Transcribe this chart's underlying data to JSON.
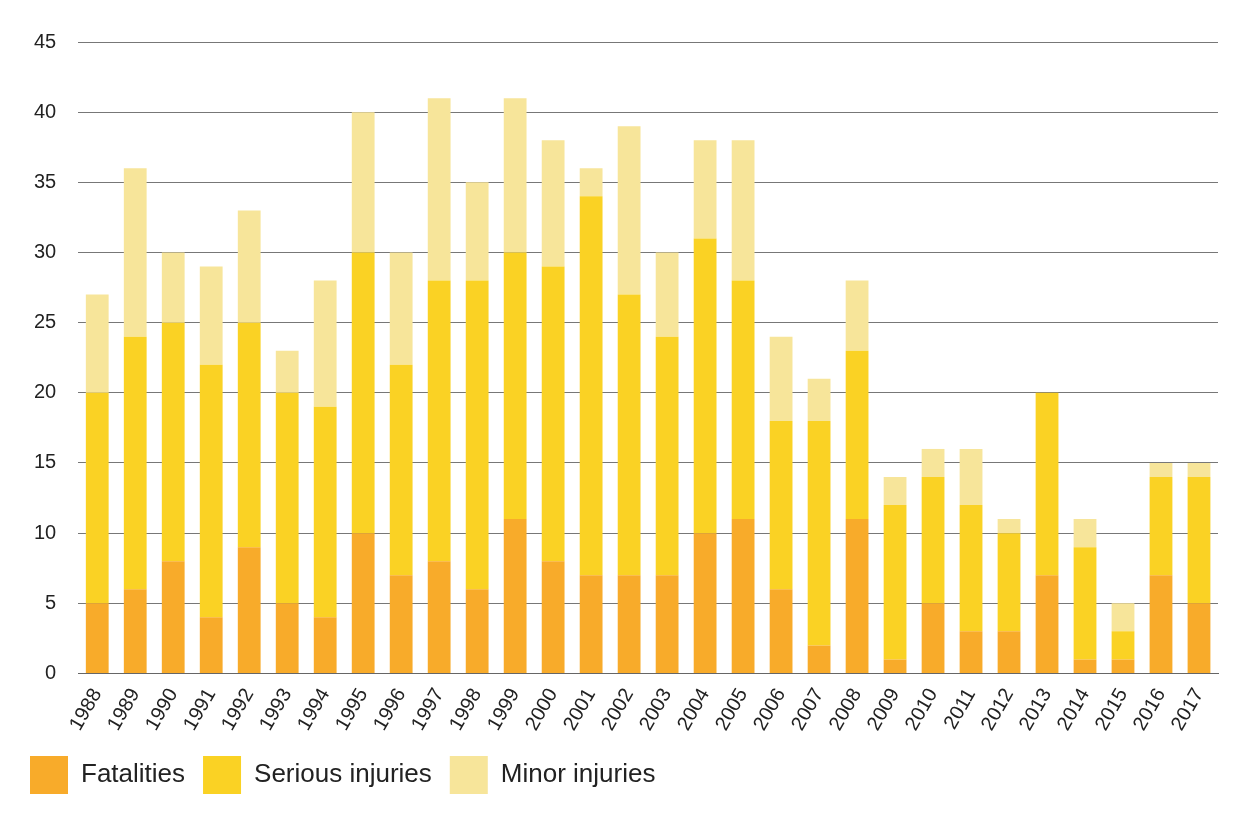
{
  "chart_data": {
    "type": "bar",
    "stacked": true,
    "categories": [
      "1988",
      "1989",
      "1990",
      "1991",
      "1992",
      "1993",
      "1994",
      "1995",
      "1996",
      "1997",
      "1998",
      "1999",
      "2000",
      "2001",
      "2002",
      "2003",
      "2004",
      "2005",
      "2006",
      "2007",
      "2008",
      "2009",
      "2010",
      "2011",
      "2012",
      "2013",
      "2014",
      "2015",
      "2016",
      "2017"
    ],
    "series": [
      {
        "name": "Fatalities",
        "color": "#f8ab2a",
        "values": [
          5,
          6,
          8,
          4,
          9,
          5,
          4,
          10,
          7,
          8,
          6,
          11,
          8,
          7,
          7,
          7,
          10,
          11,
          6,
          2,
          11,
          1,
          5,
          3,
          3,
          7,
          1,
          1,
          7,
          5
        ]
      },
      {
        "name": "Serious injuries",
        "color": "#fad224",
        "values": [
          15,
          18,
          17,
          18,
          16,
          15,
          15,
          20,
          15,
          20,
          22,
          19,
          21,
          27,
          20,
          17,
          21,
          17,
          12,
          16,
          12,
          11,
          9,
          9,
          7,
          13,
          8,
          2,
          7,
          9
        ]
      },
      {
        "name": "Minor injuries",
        "color": "#f7e59a",
        "values": [
          7,
          12,
          5,
          7,
          8,
          3,
          9,
          10,
          8,
          13,
          7,
          11,
          9,
          2,
          12,
          6,
          7,
          10,
          6,
          3,
          5,
          2,
          2,
          4,
          1,
          0,
          2,
          2,
          1,
          1
        ]
      }
    ],
    "ylim": [
      0,
      45
    ],
    "yticks": [
      0,
      5,
      10,
      15,
      20,
      25,
      30,
      35,
      40,
      45
    ],
    "grid": "y",
    "legend": "bottom"
  }
}
